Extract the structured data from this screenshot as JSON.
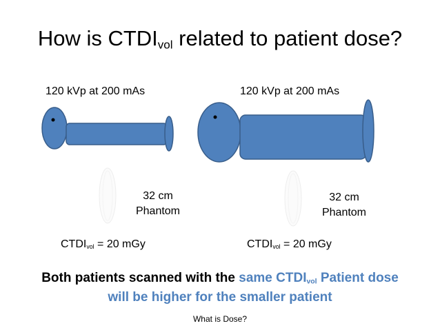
{
  "slide": {
    "title_main": "How is CTDI",
    "title_sub": "vol",
    "title_rest": " related to patient dose?",
    "left_condition": "120 kVp at 200 mAs",
    "right_condition": "120 kVp at 200 mAs",
    "phantom_line1": "32 cm",
    "phantom_line2": "Phantom",
    "ctdi_main": "CTDI",
    "ctdi_sub": "vol",
    "ctdi_value": " = 20 mGy",
    "summary_part1": "Both patients scanned with the ",
    "summary_part2": "same CTDI",
    "summary_sub": "vol",
    "summary_part3": " Patient dose",
    "summary_line2": "will be higher for the smaller patient",
    "footer": "What is Dose?"
  },
  "colors": {
    "body_fill": "#4f81bd",
    "body_stroke": "#385d8a",
    "accent_text": "#4f81bd"
  }
}
